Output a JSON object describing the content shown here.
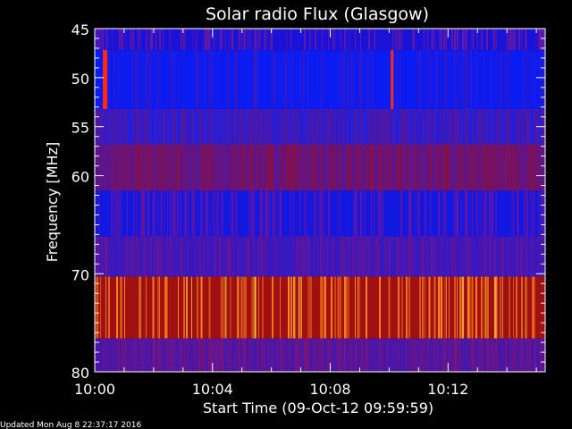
{
  "chart_data": {
    "type": "heatmap",
    "title": "Solar radio Flux (Glasgow)",
    "xlabel": "Start Time (09-Oct-12 09:59:59)",
    "ylabel_text": "Frequency ",
    "ylabel_unit": "[MHz]",
    "footer": "Updated Mon Aug  8 22:37:17 2016",
    "x_range_minutes": [
      0,
      15.3
    ],
    "y_range_mhz": [
      45,
      80
    ],
    "x_ticks": [
      {
        "minute": 0,
        "label": "10:00"
      },
      {
        "minute": 4,
        "label": "10:04"
      },
      {
        "minute": 8,
        "label": "10:08"
      },
      {
        "minute": 12,
        "label": "10:12"
      }
    ],
    "y_ticks": [
      {
        "mhz": 45,
        "label": "45"
      },
      {
        "mhz": 50,
        "label": "50"
      },
      {
        "mhz": 55,
        "label": "55"
      },
      {
        "mhz": 60,
        "label": "60"
      },
      {
        "mhz": 70,
        "label": "70"
      },
      {
        "mhz": 80,
        "label": "80"
      }
    ],
    "y_minor_ticks_mhz": [
      46,
      47,
      48,
      49,
      51,
      52,
      53,
      54,
      56,
      57,
      58,
      59,
      61,
      62,
      63,
      64,
      65,
      66,
      67,
      68,
      69,
      71,
      72,
      73,
      74,
      75,
      76,
      77,
      78,
      79
    ],
    "x_minor_ticks_minutes": [
      1,
      2,
      3,
      5,
      6,
      7,
      9,
      10,
      11,
      13,
      14,
      15
    ],
    "bands": [
      {
        "from_mhz": 45,
        "to_mhz": 47.2,
        "base": "#1b12d8",
        "streak": "#6a1aa0",
        "density": 0.35
      },
      {
        "from_mhz": 47.2,
        "to_mhz": 53.2,
        "base": "#0a1cf2",
        "streak": "#3a18c0",
        "density": 0.25
      },
      {
        "from_mhz": 53.2,
        "to_mhz": 56.8,
        "base": "#4b18a8",
        "streak": "#1a20e8",
        "density": 0.45
      },
      {
        "from_mhz": 56.8,
        "to_mhz": 61.5,
        "base": "#5a1590",
        "streak": "#8a1040",
        "density": 0.5
      },
      {
        "from_mhz": 61.5,
        "to_mhz": 66.2,
        "base": "#1218e0",
        "streak": "#6a15a0",
        "density": 0.35
      },
      {
        "from_mhz": 66.2,
        "to_mhz": 70.3,
        "base": "#3a18c0",
        "streak": "#6a1590",
        "density": 0.4
      },
      {
        "from_mhz": 70.3,
        "to_mhz": 76.6,
        "base": "#a01010",
        "streak": "#ff8a20",
        "density": 0.3
      },
      {
        "from_mhz": 76.6,
        "to_mhz": 80,
        "base": "#4a16a8",
        "streak": "#7a1478",
        "density": 0.45
      }
    ],
    "bursts": [
      {
        "minute": 0.35,
        "from_mhz": 47.2,
        "to_mhz": 53.2,
        "color": "#ff2a10"
      },
      {
        "minute": 10.1,
        "from_mhz": 47.2,
        "to_mhz": 53.2,
        "color": "#ff2a10"
      }
    ]
  }
}
